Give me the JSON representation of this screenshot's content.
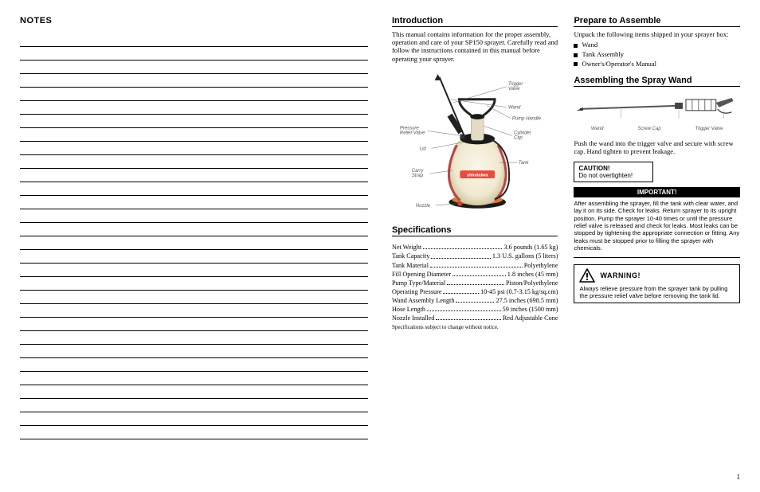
{
  "notes": {
    "heading": "NOTES",
    "line_count": 30
  },
  "intro": {
    "heading": "Introduction",
    "body": "This manual contains information for the proper assembly, operation and care of your SP150 sprayer. Carefully read and follow the instructions contained in this manual before operating your sprayer.",
    "diagram": {
      "brand": "shindaiwa",
      "labels_left": [
        "Pressure Relief Valve",
        "Lid",
        "Carry Strap",
        "Nozzle"
      ],
      "labels_right": [
        "Trigger Valve",
        "Wand",
        "Pump Handle",
        "Cylinder Cap",
        "Tank"
      ],
      "colors": {
        "tank_body": "#f4eedd",
        "tank_shadow": "#cbbf9a",
        "cap_black": "#1a1a1a",
        "handle": "#222222",
        "strap": "#b94545",
        "orange": "#d97a2e"
      }
    }
  },
  "specs": {
    "heading": "Specifications",
    "rows": [
      {
        "label": "Net Weight",
        "value": "3.6 pounds (1.65 kg)"
      },
      {
        "label": "Tank Capacity",
        "value": "1.3 U.S. gallons (5 liters)"
      },
      {
        "label": "Tank Material",
        "value": "Polyethylene"
      },
      {
        "label": "Fill Opening Diameter",
        "value": "1.8 inches (45 mm)"
      },
      {
        "label": "Pump Type/Material",
        "value": "Piston/Polyethylene"
      },
      {
        "label": "Operating Pressure",
        "value": "10-45 psi (0.7-3.15 kg/sq.cm)"
      },
      {
        "label": "Wand Assembly Length",
        "value": "27.5 inches (698.5 mm)"
      },
      {
        "label": "Hose Length",
        "value": "59 inches (1500 mm)"
      },
      {
        "label": "Nozzle Installed",
        "value": "Red Adjustable Cone"
      }
    ],
    "footnote": "Specifications subject to change without notice."
  },
  "prepare": {
    "heading": "Prepare to Assemble",
    "intro": "Unpack the following items shipped in your sprayer box:",
    "items": [
      "Wand",
      "Tank Assembly",
      "Owner's/Operator's Manual"
    ]
  },
  "assemble": {
    "heading": "Assembling the Spray Wand",
    "labels": [
      "Wand",
      "Screw Cap",
      "Trigger Valve"
    ],
    "body": "Push the wand into the trigger valve and secure with screw cap. Hand tighten to prevent leakage.",
    "caution": {
      "title": "CAUTION!",
      "text": "Do not overtighten!"
    },
    "important": {
      "title": "IMPORTANT!",
      "body": "After assembling the sprayer, fill the tank with clear water, and lay it on its side. Check for leaks. Return sprayer to its upright position. Pump the sprayer 10-40 times or until the pressure relief valve is released and check for leaks. Most leaks can be stopped by tightening the appropriate connection or fitting. Any leaks must be stopped prior to filling the sprayer with chemicals."
    },
    "warning": {
      "title": "WARNING!",
      "body": "Always relieve pressure from the sprayer tank by pulling the pressure relief valve before removing the tank lid."
    }
  },
  "page_number": "1"
}
